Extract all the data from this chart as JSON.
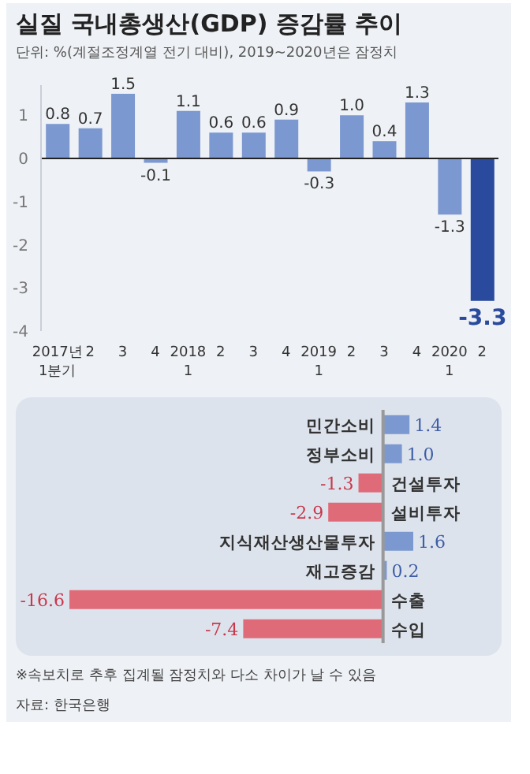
{
  "chart_data": [
    {
      "type": "bar",
      "title": "실질 국내총생산(GDP) 증감률 추이",
      "subtitle": "단위: %(계절조정계열 전기 대비), 2019~2020년은 잠정치",
      "categories": [
        "2017년\n1분기",
        "2",
        "3",
        "4",
        "2018\n1",
        "2",
        "3",
        "4",
        "2019\n1",
        "2",
        "3",
        "4",
        "2020\n1",
        "2"
      ],
      "values": [
        0.8,
        0.7,
        1.5,
        -0.1,
        1.1,
        0.6,
        0.6,
        0.9,
        -0.3,
        1.0,
        0.4,
        1.3,
        -1.3,
        -3.3
      ],
      "value_labels": [
        "0.8",
        "0.7",
        "1.5",
        "-0.1",
        "1.1",
        "0.6",
        "0.6",
        "0.9",
        "-0.3",
        "1.0",
        "0.4",
        "1.3",
        "-1.3",
        "-3.3"
      ],
      "colors": [
        "#7c98d0",
        "#7c98d0",
        "#7c98d0",
        "#7c98d0",
        "#7c98d0",
        "#7c98d0",
        "#7c98d0",
        "#7c98d0",
        "#7c98d0",
        "#7c98d0",
        "#7c98d0",
        "#7c98d0",
        "#7c98d0",
        "#2a4a9e"
      ],
      "ylim": [
        -4,
        1.7
      ],
      "yticks": [
        -4,
        -3,
        -2,
        -1,
        0,
        1
      ]
    },
    {
      "type": "bar",
      "orientation": "horizontal",
      "categories": [
        "민간소비",
        "정부소비",
        "건설투자",
        "설비투자",
        "지식재산생산물투자",
        "재고증감",
        "수출",
        "수입"
      ],
      "values": [
        1.4,
        1.0,
        -1.3,
        -2.9,
        1.6,
        0.2,
        -16.6,
        -7.4
      ],
      "value_labels": [
        "1.4",
        "1.0",
        "-1.3",
        "-2.9",
        "1.6",
        "0.2",
        "-16.6",
        "-7.4"
      ],
      "colors": [
        "#7c98d0",
        "#7c98d0",
        "#e06b78",
        "#e06b78",
        "#7c98d0",
        "#7c98d0",
        "#e06b78",
        "#e06b78"
      ],
      "annotations": [
        "※속보치로 추후 집계될 잠정치와 다소 차이가 날 수 있음",
        "자료: 한국은행"
      ]
    }
  ]
}
